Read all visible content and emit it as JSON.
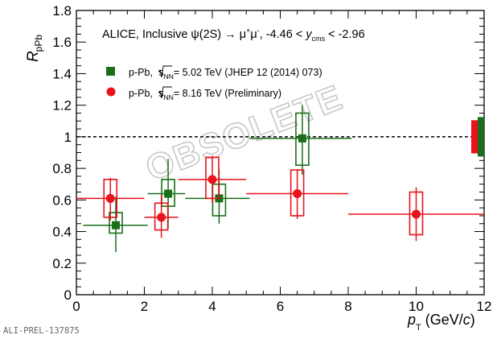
{
  "chart_data": {
    "type": "scatter",
    "title_parts": {
      "prefix": "ALICE, Inclusive ψ(2S) → μ",
      "plus": "+",
      "mu2": "μ",
      "minus": "-",
      "range_start": ", -4.46 < ",
      "y": "y",
      "cms": "cms",
      "range_end": " < -2.96"
    },
    "ylabel_main": "R",
    "ylabel_sub": "pPb",
    "xlabel_main": "p",
    "xlabel_sub": "T",
    "xlabel_unit_open": " (GeV/",
    "xlabel_unit_c": "c",
    "xlabel_unit_close": ")",
    "xlim": [
      0,
      12
    ],
    "ylim": [
      0,
      1.8
    ],
    "x_ticks": [
      "0",
      "2",
      "4",
      "6",
      "8",
      "10",
      "12"
    ],
    "y_ticks": [
      "0",
      "0.2",
      "0.4",
      "0.6",
      "0.8",
      "1",
      "1.2",
      "1.4",
      "1.6",
      "1.8"
    ],
    "reference_line": 1.0,
    "watermark": "OBSOLETE",
    "corner_label": "ALI-PREL-137875",
    "global_uncertainty": [
      {
        "color": "#e8131b",
        "low": 0.895,
        "high": 1.105
      },
      {
        "color": "#1a6e1a",
        "low": 0.875,
        "high": 1.125
      }
    ],
    "series": [
      {
        "legend_label_pre": "p-Pb, ",
        "legend_label_s": "s",
        "legend_label_nn": "NN",
        "legend_label_post": "= 5.02 TeV (JHEP 12 (2014) 073)",
        "color": "#1a6e1a",
        "marker": "square",
        "points": [
          {
            "x": 1.16,
            "y": 0.44,
            "xlow": 0.2,
            "xhigh": 2.1,
            "stat_low": 0.27,
            "stat_high": 0.62,
            "sys_low": 0.39,
            "sys_high": 0.52
          },
          {
            "x": 2.7,
            "y": 0.64,
            "xlow": 2.1,
            "xhigh": 3.2,
            "stat_low": 0.42,
            "stat_high": 0.86,
            "sys_low": 0.56,
            "sys_high": 0.73
          },
          {
            "x": 4.2,
            "y": 0.61,
            "xlow": 3.2,
            "xhigh": 5.1,
            "stat_low": 0.45,
            "stat_high": 0.79,
            "sys_low": 0.5,
            "sys_high": 0.7
          },
          {
            "x": 6.65,
            "y": 0.99,
            "xlow": 5.1,
            "xhigh": 8.1,
            "stat_low": 0.76,
            "stat_high": 1.2,
            "sys_low": 0.82,
            "sys_high": 1.15
          }
        ]
      },
      {
        "legend_label_pre": "p-Pb, ",
        "legend_label_s": "s",
        "legend_label_nn": "NN",
        "legend_label_post": "= 8.16 TeV (Preliminary)",
        "color": "#e8131b",
        "marker": "circle",
        "points": [
          {
            "x": 1.0,
            "y": 0.61,
            "xlow": 0.0,
            "xhigh": 2.0,
            "stat_low": 0.47,
            "stat_high": 0.74,
            "sys_low": 0.49,
            "sys_high": 0.73
          },
          {
            "x": 2.5,
            "y": 0.49,
            "xlow": 2.0,
            "xhigh": 3.0,
            "stat_low": 0.36,
            "stat_high": 0.63,
            "sys_low": 0.41,
            "sys_high": 0.58
          },
          {
            "x": 4.0,
            "y": 0.73,
            "xlow": 3.0,
            "xhigh": 5.0,
            "stat_low": 0.58,
            "stat_high": 0.88,
            "sys_low": 0.61,
            "sys_high": 0.87
          },
          {
            "x": 6.5,
            "y": 0.64,
            "xlow": 5.0,
            "xhigh": 8.0,
            "stat_low": 0.48,
            "stat_high": 0.79,
            "sys_low": 0.5,
            "sys_high": 0.79
          },
          {
            "x": 10.0,
            "y": 0.51,
            "xlow": 8.0,
            "xhigh": 12.0,
            "stat_low": 0.34,
            "stat_high": 0.68,
            "sys_low": 0.38,
            "sys_high": 0.65
          }
        ]
      }
    ]
  }
}
